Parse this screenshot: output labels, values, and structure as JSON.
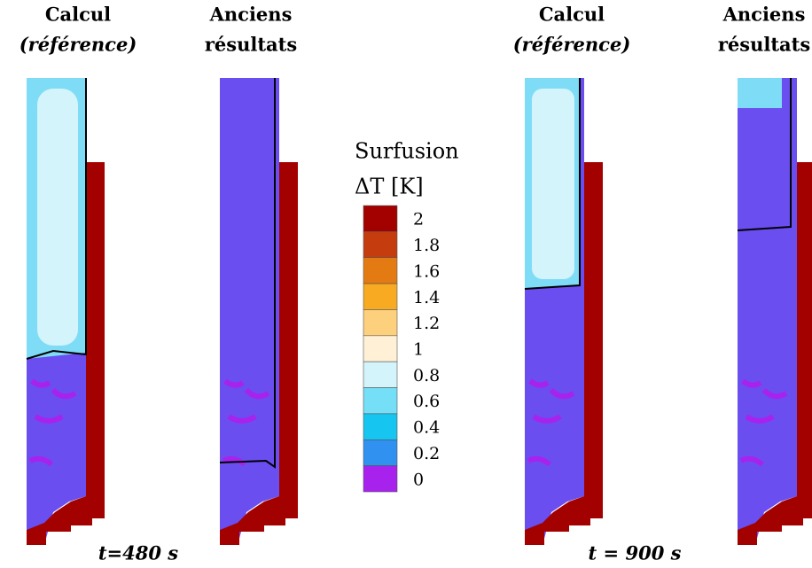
{
  "panels": [
    {
      "title": [
        "Calcul",
        "(référence)"
      ]
    },
    {
      "title": [
        "Anciens",
        "résultats"
      ]
    },
    {
      "title": [
        "Calcul",
        "(référence)"
      ]
    },
    {
      "title": [
        "Anciens",
        "résultats"
      ]
    }
  ],
  "colorbar": {
    "title": "Surfusion",
    "unit": "ΔT [K]",
    "ticks": [
      2,
      1.8,
      1.6,
      1.4,
      1.2,
      1,
      0.8,
      0.6,
      0.4,
      0.2,
      0
    ],
    "colors": [
      "#a30000",
      "#c53d0e",
      "#e37b12",
      "#f7aa22",
      "#fcd07c",
      "#fff0d6",
      "#d2f4fa",
      "#74dff7",
      "#16c6f0",
      "#3191f0",
      "#a822ee"
    ]
  },
  "time_labels": [
    "t=480 s",
    "t = 900 s"
  ]
}
